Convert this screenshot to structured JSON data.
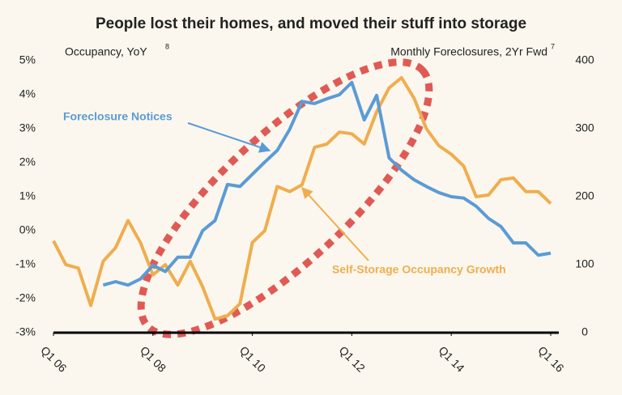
{
  "chart_data": {
    "type": "line",
    "title": "People lost their homes, and moved their stuff into storage",
    "y_label": "Occupancy, YoY",
    "y_label_note": "8",
    "y2_label": "Monthly Foreclosures, 2Yr Fwd",
    "y2_label_note": "7",
    "x": [
      2006,
      2006.25,
      2006.5,
      2006.75,
      2007,
      2007.25,
      2007.5,
      2007.75,
      2008,
      2008.25,
      2008.5,
      2008.75,
      2009,
      2009.25,
      2009.5,
      2009.75,
      2010,
      2010.25,
      2010.5,
      2010.75,
      2011,
      2011.25,
      2011.5,
      2011.75,
      2012,
      2012.25,
      2012.5,
      2012.75,
      2013,
      2013.25,
      2013.5,
      2013.75,
      2014,
      2014.25,
      2014.5,
      2014.75,
      2015,
      2015.25,
      2015.5,
      2015.75,
      2016
    ],
    "xlim": [
      2006,
      2016
    ],
    "xticks": [
      {
        "value": 2006,
        "label": "Q1 06"
      },
      {
        "value": 2008,
        "label": "Q1 08"
      },
      {
        "value": 2010,
        "label": "Q1 10"
      },
      {
        "value": 2012,
        "label": "Q1 12"
      },
      {
        "value": 2014,
        "label": "Q1 14"
      },
      {
        "value": 2016,
        "label": "Q1 16"
      }
    ],
    "ylim": [
      -3,
      5
    ],
    "yticks": [
      {
        "value": -3,
        "label": "-3%"
      },
      {
        "value": -2,
        "label": "-2%"
      },
      {
        "value": -1,
        "label": "-1%"
      },
      {
        "value": 0,
        "label": "0%"
      },
      {
        "value": 1,
        "label": "1%"
      },
      {
        "value": 2,
        "label": "2%"
      },
      {
        "value": 3,
        "label": "3%"
      },
      {
        "value": 4,
        "label": "4%"
      },
      {
        "value": 5,
        "label": "5%"
      }
    ],
    "y2lim": [
      0,
      400
    ],
    "y2ticks": [
      0,
      100,
      200,
      300,
      400
    ],
    "series": [
      {
        "name": "Self-Storage Occupancy Growth",
        "color": "#f0ad4e",
        "values": [
          -0.3,
          -1.0,
          -1.1,
          -2.2,
          -0.9,
          -0.5,
          0.3,
          -0.35,
          -1.3,
          -1.0,
          -1.6,
          -0.9,
          -1.65,
          -2.6,
          -2.5,
          -2.15,
          -0.35,
          0.0,
          1.3,
          1.15,
          1.35,
          2.45,
          2.55,
          2.9,
          2.85,
          2.55,
          3.5,
          4.2,
          4.5,
          3.9,
          3.0,
          2.5,
          2.25,
          1.9,
          1.0,
          1.05,
          1.5,
          1.55,
          1.15,
          1.15,
          0.8
        ]
      },
      {
        "name": "Foreclosure Notices",
        "color": "#5b9bd5",
        "axis": "y2",
        "values": [
          null,
          null,
          null,
          null,
          70,
          75,
          70,
          79,
          99,
          90,
          111,
          111,
          150,
          165,
          218,
          215,
          233,
          251,
          268,
          299,
          340,
          337,
          344,
          350,
          368,
          313,
          349,
          257,
          239,
          225,
          215,
          206,
          200,
          198,
          186,
          168,
          156,
          132,
          132,
          114,
          117
        ]
      }
    ]
  }
}
